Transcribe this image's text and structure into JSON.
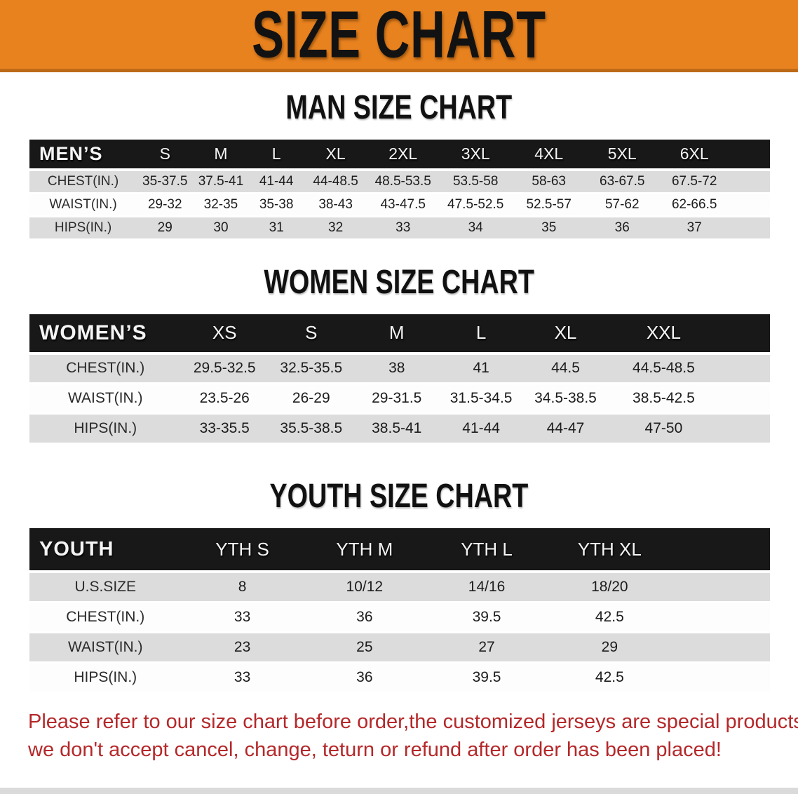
{
  "banner": {
    "title": "SIZE CHART",
    "bg_color": "#E8821F",
    "edge_color": "#BD6A17",
    "text_color": "#121212"
  },
  "sections": [
    {
      "id": "men",
      "heading": "MAN SIZE CHART",
      "table": {
        "header_label": "MEN’S",
        "columns": [
          "S",
          "M",
          "L",
          "XL",
          "2XL",
          "3XL",
          "4XL",
          "5XL",
          "6XL"
        ],
        "rows": [
          {
            "label": "CHEST(IN.)",
            "values": [
              "35-37.5",
              "37.5-41",
              "41-44",
              "44-48.5",
              "48.5-53.5",
              "53.5-58",
              "58-63",
              "63-67.5",
              "67.5-72"
            ]
          },
          {
            "label": "WAIST(IN.)",
            "values": [
              "29-32",
              "32-35",
              "35-38",
              "38-43",
              "43-47.5",
              "47.5-52.5",
              "52.5-57",
              "57-62",
              "62-66.5"
            ]
          },
          {
            "label": "HIPS(IN.)",
            "values": [
              "29",
              "30",
              "31",
              "32",
              "33",
              "34",
              "35",
              "36",
              "37"
            ]
          }
        ]
      }
    },
    {
      "id": "women",
      "heading": "WOMEN SIZE CHART",
      "table": {
        "header_label": "WOMEN’S",
        "columns": [
          "XS",
          "S",
          "M",
          "L",
          "XL",
          "XXL"
        ],
        "rows": [
          {
            "label": "CHEST(IN.)",
            "values": [
              "29.5-32.5",
              "32.5-35.5",
              "38",
              "41",
              "44.5",
              "44.5-48.5"
            ]
          },
          {
            "label": "WAIST(IN.)",
            "values": [
              "23.5-26",
              "26-29",
              "29-31.5",
              "31.5-34.5",
              "34.5-38.5",
              "38.5-42.5"
            ]
          },
          {
            "label": "HIPS(IN.)",
            "values": [
              "33-35.5",
              "35.5-38.5",
              "38.5-41",
              "41-44",
              "44-47",
              "47-50"
            ]
          }
        ]
      }
    },
    {
      "id": "youth",
      "heading": "YOUTH SIZE CHART",
      "table": {
        "header_label": "YOUTH",
        "columns": [
          "YTH S",
          "YTH M",
          "YTH L",
          "YTH XL"
        ],
        "rows": [
          {
            "label": "U.S.SIZE",
            "values": [
              "8",
              "10/12",
              "14/16",
              "18/20"
            ]
          },
          {
            "label": "CHEST(IN.)",
            "values": [
              "33",
              "36",
              "39.5",
              "42.5"
            ]
          },
          {
            "label": "WAIST(IN.)",
            "values": [
              "23",
              "25",
              "27",
              "29"
            ]
          },
          {
            "label": "HIPS(IN.)",
            "values": [
              "33",
              "36",
              "39.5",
              "42.5"
            ]
          }
        ]
      }
    }
  ],
  "disclaimer": {
    "line1": "Please refer to our size chart before order,the customized jerseys are special products,",
    "line2": "we don't accept cancel, change, teturn or refund after order has been placed!",
    "text_color": "#B5282A"
  },
  "colors": {
    "header_bar_bg": "#181818",
    "row_stripe_gray": "#DCDCDC",
    "row_stripe_white": "#FDFDFD"
  }
}
